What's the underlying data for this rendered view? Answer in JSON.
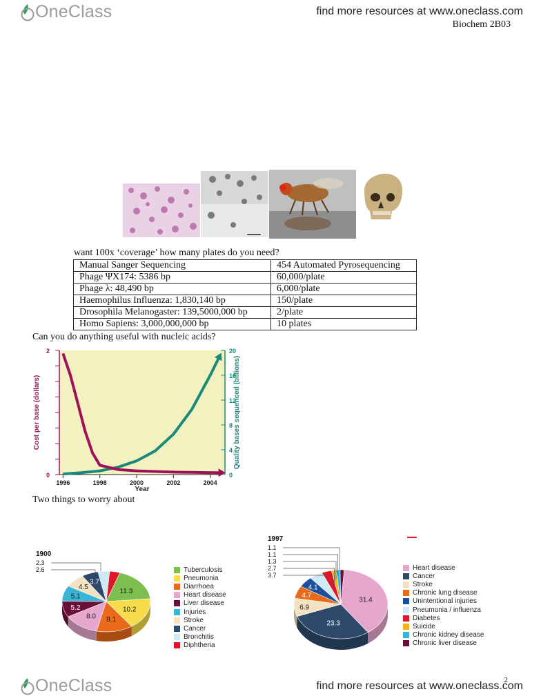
{
  "header": {
    "logo_text": "OneClass",
    "find_resources": "find more resources at www.oneclass.com",
    "course": "Biochem 2B03"
  },
  "images": [
    "bacteria-micrograph",
    "phage-micrograph",
    "fruit-fly-photo",
    "human-skull-photo"
  ],
  "question": "want 100x ‘coverage’ how many plates do you need?",
  "table": {
    "header": [
      "Manual Sanger Sequencing",
      "454 Automated Pyrosequencing"
    ],
    "rows": [
      [
        "Phage ΨX174: 5386 bp",
        "60,000/plate"
      ],
      [
        "Phage λ: 48,490 bp",
        "6,000/plate"
      ],
      [
        "Haemophilus Influenza: 1,830,140 bp",
        "150/plate"
      ],
      [
        "Drosophila Melanogaster: 139,5000,000 bp",
        "2/plate"
      ],
      [
        "Homo Sapiens: 3,000,000,000 bp",
        "10 plates"
      ]
    ]
  },
  "nucleic_question": "Can you do anything useful with nucleic acids?",
  "worry": "Two things to worry about",
  "cost_chart": {
    "xlabel": "Year",
    "ylabel_left": "Cost per base (dollars)",
    "ylabel_right": "Quality bases sequenced (billions)",
    "xticks": [
      "1996",
      "1998",
      "2000",
      "2002",
      "2004"
    ],
    "yticks_left": [
      "0",
      "2"
    ],
    "yticks_right": [
      "0",
      "4",
      "8",
      "12",
      "16",
      "20"
    ],
    "colors": {
      "cost": "#a0105a",
      "bases": "#1a8a78",
      "bg": "#f4f1c0"
    }
  },
  "chart_data": [
    {
      "type": "line",
      "title": "",
      "xlabel": "Year",
      "ylabel": "Cost per base (dollars)",
      "y2label": "Quality bases sequenced (billions)",
      "xlim": [
        1995.8,
        2004.8
      ],
      "ylim": [
        0,
        2
      ],
      "y2lim": [
        0,
        20
      ],
      "series": [
        {
          "name": "",
          "axis": "left",
          "x": [
            1996,
            1996.4,
            1996.8,
            1997.2,
            1997.6,
            1998,
            1999,
            2000,
            2001,
            2002,
            2003,
            2004,
            2004.6
          ],
          "y": [
            1.95,
            1.6,
            1.15,
            0.7,
            0.35,
            0.15,
            0.08,
            0.06,
            0.05,
            0.04,
            0.035,
            0.03,
            0.03
          ]
        },
        {
          "name": "",
          "axis": "right",
          "x": [
            1996,
            1997,
            1998,
            1999,
            2000,
            2001,
            2002,
            2003,
            2004,
            2004.5
          ],
          "y": [
            0.1,
            0.3,
            0.6,
            1.2,
            2.2,
            3.8,
            6.5,
            10.5,
            16,
            19
          ]
        }
      ]
    },
    {
      "type": "pie",
      "title": "1900",
      "labels": [
        "Tuberculosis",
        "Pneumonia",
        "Diarrhoea",
        "Heart disease",
        "Liver disease",
        "Injuries",
        "Stroke",
        "Cancer",
        "Bronchitis",
        "Diphtheria"
      ],
      "values": [
        11.3,
        10.2,
        8.1,
        8.0,
        5.2,
        5.1,
        4.5,
        3.7,
        2.6,
        2.3
      ],
      "colors": [
        "#7dbf4e",
        "#f6dc4a",
        "#ea6a1c",
        "#e6a6cd",
        "#6a0f3a",
        "#3bb5d6",
        "#f2e2c2",
        "#2e4a6b",
        "#cdeaf5",
        "#e0172b"
      ]
    },
    {
      "type": "pie",
      "title": "1997",
      "labels": [
        "Heart disease",
        "Cancer",
        "Stroke",
        "Chronic lung disease",
        "Unintentional injuries",
        "Pneumonia / influenza",
        "Diabetes",
        "Suicide",
        "Chronic kidney disease",
        "Chronic liver disease"
      ],
      "values": [
        31.4,
        23.3,
        6.9,
        4.7,
        4.1,
        3.7,
        2.7,
        1.3,
        1.1,
        1.1
      ],
      "colors": [
        "#e6a6cd",
        "#2e4a6b",
        "#f2e2c2",
        "#ea6a1c",
        "#1c4f9c",
        "#cdeaf5",
        "#e0172b",
        "#f6b21a",
        "#3bb5d6",
        "#6a0f3a"
      ]
    }
  ],
  "footer": {
    "logo_text": "OneClass",
    "find_resources": "find more resources at www.oneclass.com",
    "page": "2"
  }
}
